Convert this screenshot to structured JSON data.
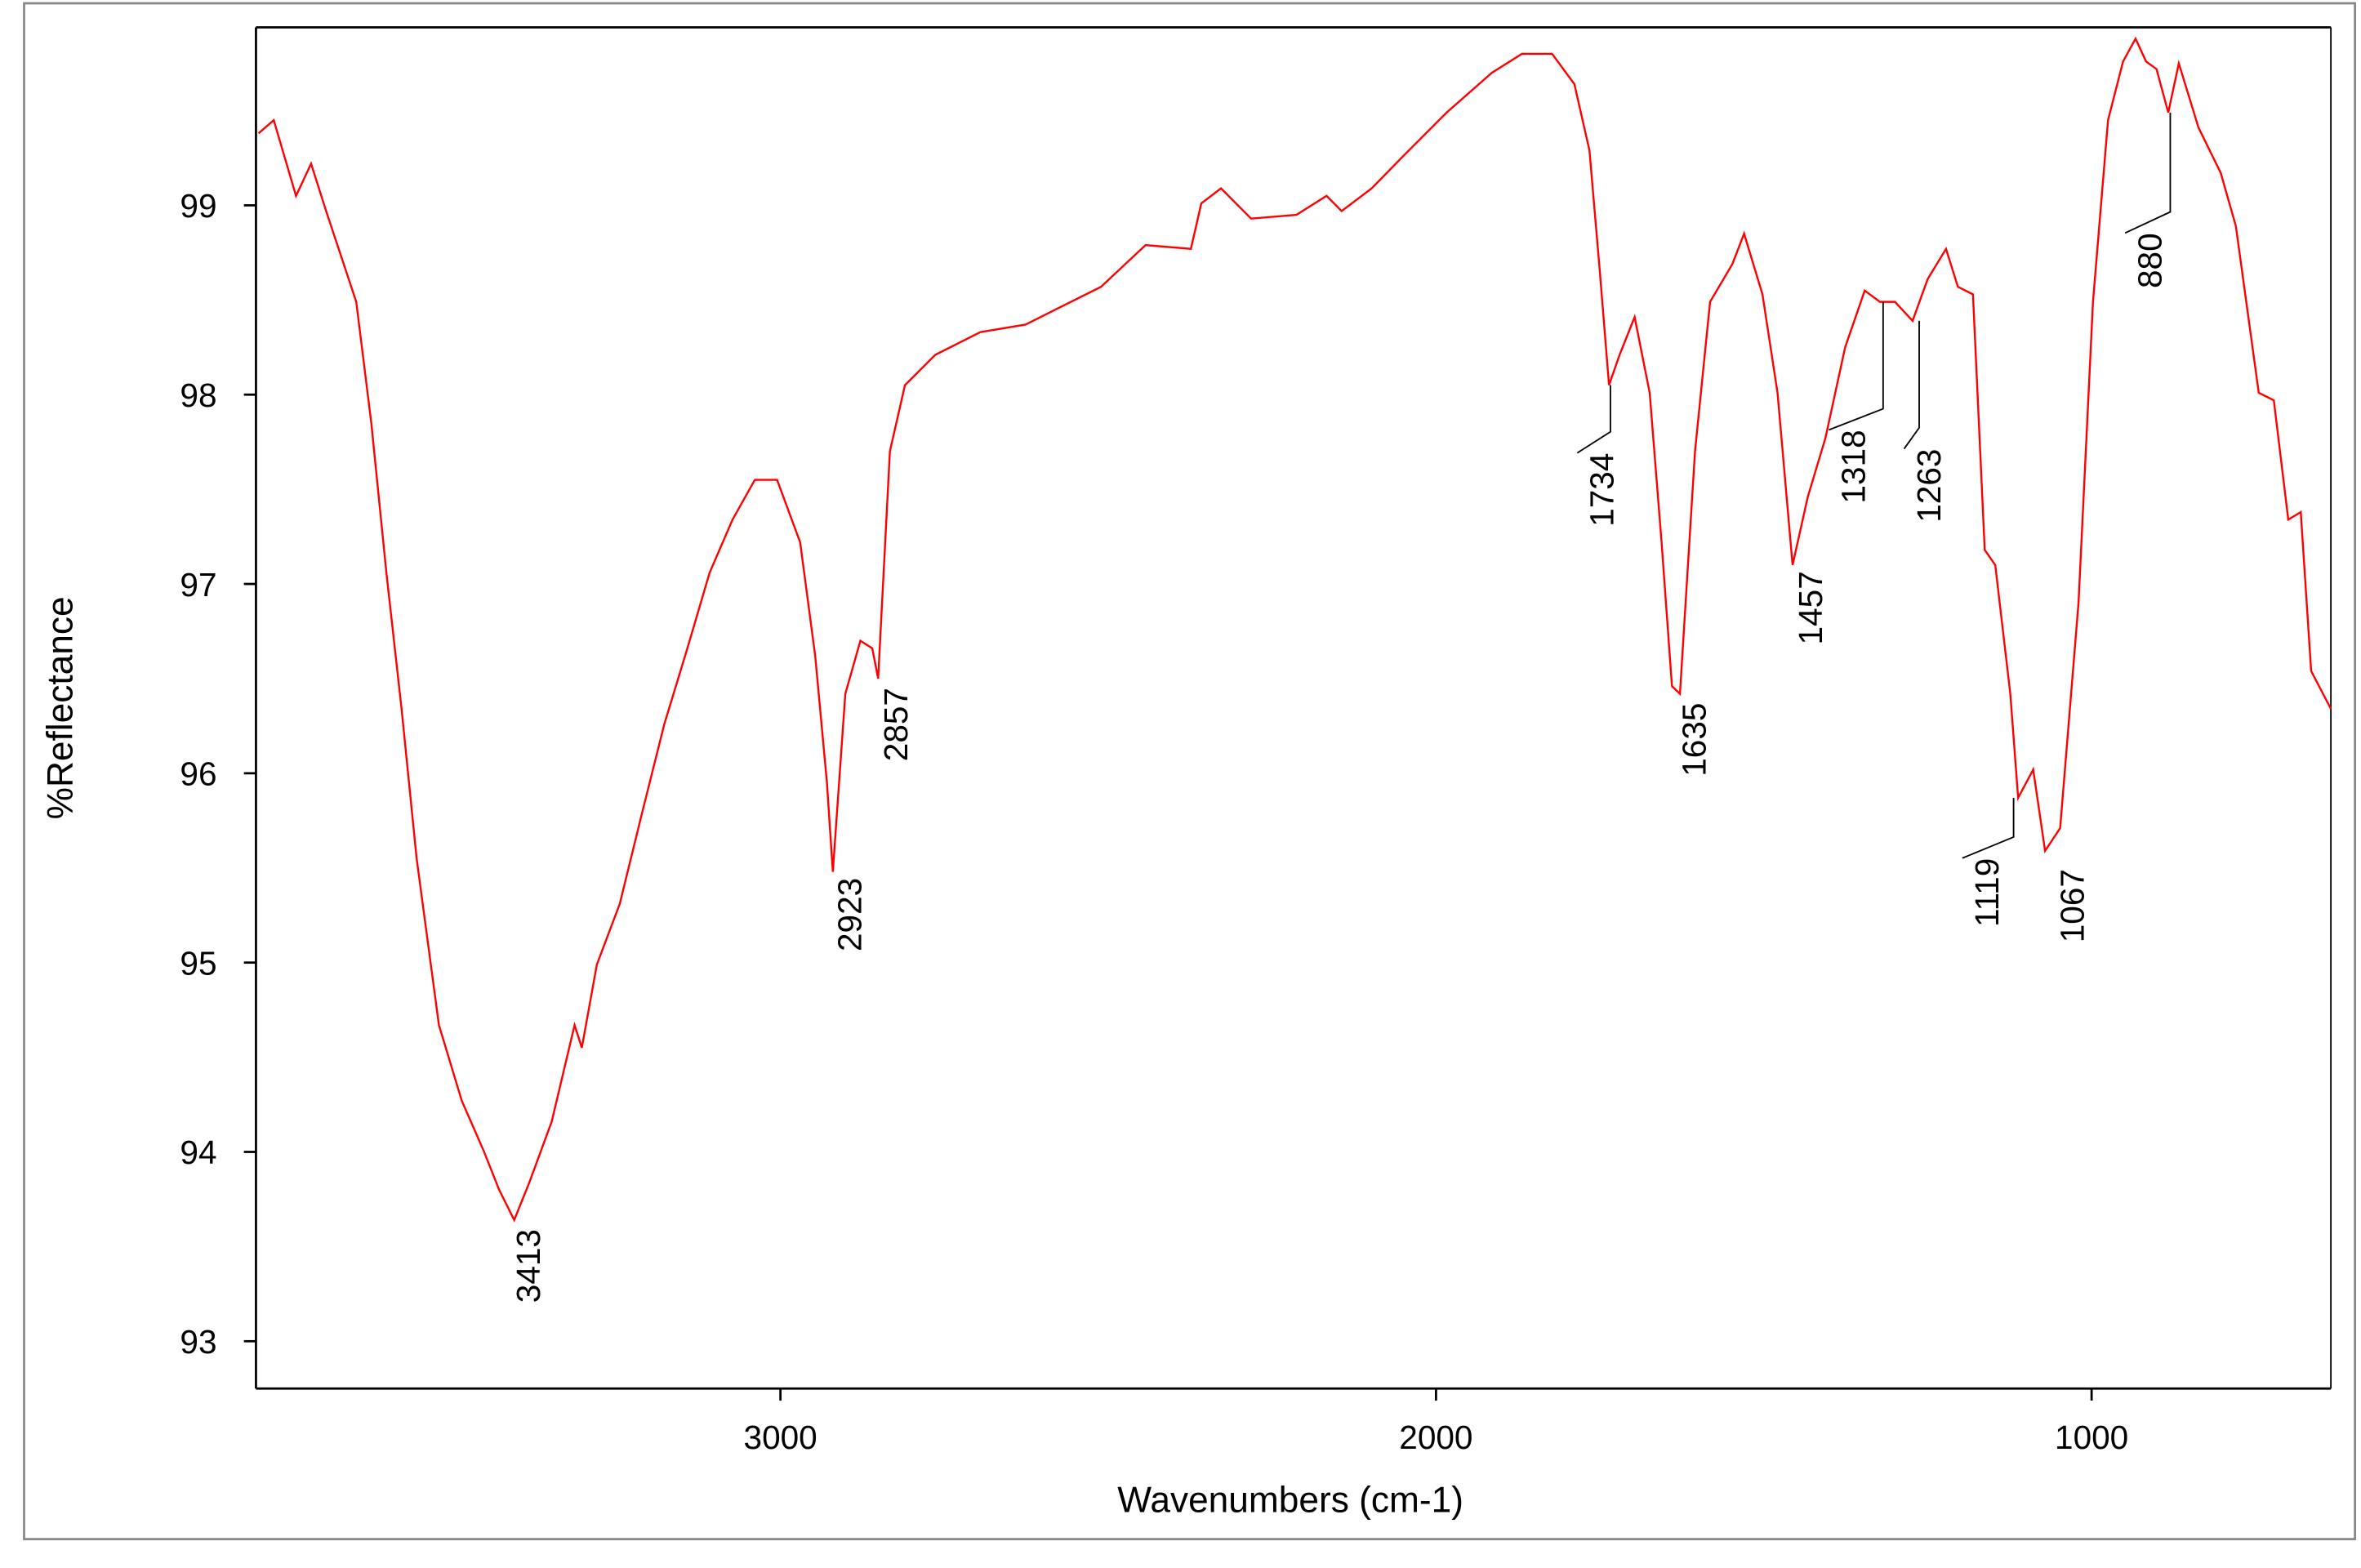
{
  "chart_data": {
    "type": "line",
    "xlabel": "Wavenumbers (cm-1)",
    "ylabel": "%Reflectance",
    "xlim": [
      3800,
      635
    ],
    "ylim": [
      92.75,
      99.94
    ],
    "xticks": [
      3000,
      2000,
      1000
    ],
    "yticks": [
      93,
      94,
      95,
      96,
      97,
      98,
      99
    ],
    "color": "#ff0000",
    "x": [
      3796,
      3773,
      3739,
      3716,
      3693,
      3670,
      3647,
      3624,
      3601,
      3578,
      3555,
      3521,
      3486,
      3452,
      3429,
      3406,
      3383,
      3349,
      3314,
      3303,
      3280,
      3245,
      3211,
      3177,
      3142,
      3108,
      3073,
      3039,
      3005,
      2970,
      2947,
      2929,
      2920,
      2901,
      2878,
      2860,
      2851,
      2833,
      2810,
      2764,
      2695,
      2626,
      2580,
      2511,
      2443,
      2374,
      2358,
      2328,
      2282,
      2213,
      2167,
      2144,
      2098,
      2053,
      1984,
      1915,
      1869,
      1823,
      1789,
      1766,
      1750,
      1736,
      1720,
      1697,
      1674,
      1656,
      1640,
      1628,
      1605,
      1582,
      1548,
      1530,
      1502,
      1479,
      1456,
      1433,
      1406,
      1376,
      1346,
      1323,
      1300,
      1273,
      1250,
      1222,
      1204,
      1181,
      1163,
      1147,
      1124,
      1112,
      1089,
      1071,
      1048,
      1020,
      998,
      975,
      952,
      933,
      917,
      901,
      883,
      867,
      837,
      803,
      780,
      745,
      722,
      700,
      681,
      665,
      635
    ],
    "values": [
      99.38,
      99.45,
      99.05,
      99.22,
      98.97,
      98.73,
      98.49,
      97.85,
      97.06,
      96.34,
      95.55,
      94.67,
      94.27,
      94.0,
      93.8,
      93.64,
      93.84,
      94.16,
      94.67,
      94.55,
      94.99,
      95.31,
      95.79,
      96.26,
      96.66,
      97.06,
      97.34,
      97.55,
      97.55,
      97.22,
      96.62,
      95.95,
      95.48,
      96.42,
      96.7,
      96.66,
      96.5,
      97.7,
      98.05,
      98.21,
      98.33,
      98.37,
      98.45,
      98.57,
      98.79,
      98.77,
      99.01,
      99.09,
      98.93,
      98.95,
      99.05,
      98.97,
      99.09,
      99.25,
      99.49,
      99.7,
      99.8,
      99.8,
      99.64,
      99.29,
      98.65,
      98.05,
      98.21,
      98.41,
      98.01,
      97.22,
      96.46,
      96.42,
      97.7,
      98.49,
      98.69,
      98.85,
      98.53,
      98.01,
      97.1,
      97.46,
      97.77,
      98.25,
      98.55,
      98.49,
      98.49,
      98.39,
      98.61,
      98.77,
      98.57,
      98.53,
      97.18,
      97.1,
      96.42,
      95.87,
      96.02,
      95.59,
      95.71,
      96.9,
      98.49,
      99.45,
      99.76,
      99.88,
      99.76,
      99.72,
      99.49,
      99.75,
      99.41,
      99.17,
      98.89,
      98.01,
      97.97,
      97.34,
      97.38,
      96.54,
      96.34
    ],
    "annotations": [
      {
        "text": "3413",
        "x": 3413,
        "y": 93.64
      },
      {
        "text": "2923",
        "x": 2923,
        "y": 95.48
      },
      {
        "text": "2857",
        "x": 2857,
        "y": 96.5
      },
      {
        "text": "1734",
        "x": 1734,
        "y": 98.05
      },
      {
        "text": "1635",
        "x": 1635,
        "y": 96.42
      },
      {
        "text": "1457",
        "x": 1457,
        "y": 97.1
      },
      {
        "text": "1318",
        "x": 1318,
        "y": 98.49
      },
      {
        "text": "1263",
        "x": 1263,
        "y": 98.39
      },
      {
        "text": "1119",
        "x": 1119,
        "y": 95.87
      },
      {
        "text": "1067",
        "x": 1067,
        "y": 95.59
      },
      {
        "text": "880",
        "x": 880,
        "y": 99.49
      }
    ]
  }
}
